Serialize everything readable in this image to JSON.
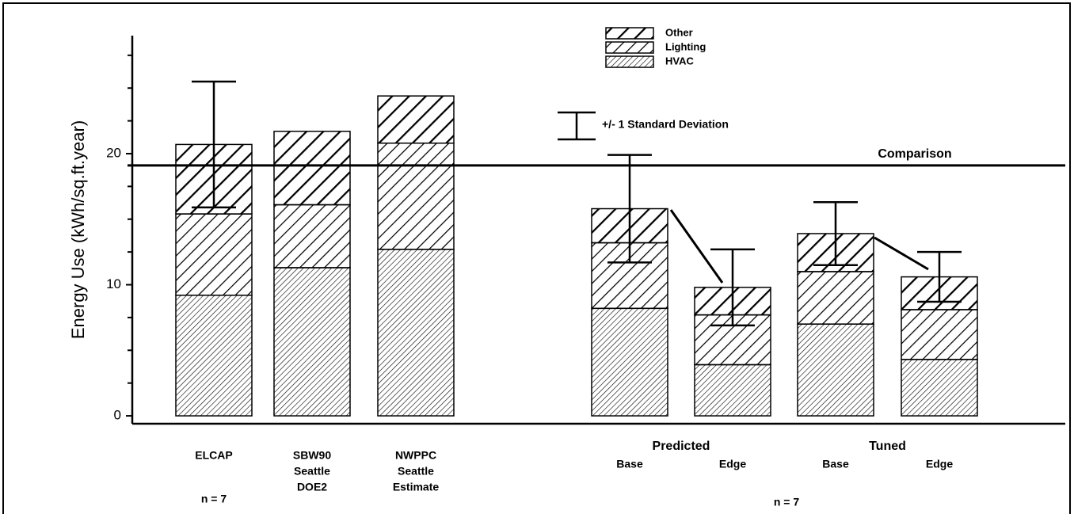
{
  "chart_data": {
    "type": "stacked_bar",
    "y_label": "Energy Use (kWh/sq.ft.year)",
    "categories": [
      [
        "ELCAP"
      ],
      [
        "SBW90",
        "Seattle",
        "DOE2"
      ],
      [
        "NWPPC",
        "Seattle",
        "Estimate"
      ],
      [
        "Base"
      ],
      [
        "Edge"
      ],
      [
        "Base"
      ],
      [
        "Edge"
      ]
    ],
    "groups": [
      {
        "label": "Predicted",
        "from": 3,
        "to": 4
      },
      {
        "label": "Tuned",
        "from": 5,
        "to": 6
      }
    ],
    "annotations": [
      "n = 7",
      "n = 7"
    ],
    "series": [
      {
        "name": "HVAC",
        "color": "#000000",
        "values": [
          9.2,
          11.3,
          12.7,
          8.2,
          3.9,
          7.0,
          4.3
        ]
      },
      {
        "name": "Lighting",
        "color": "#000000",
        "values": [
          6.2,
          4.8,
          8.1,
          5.0,
          3.8,
          4.0,
          3.8
        ]
      },
      {
        "name": "Other",
        "color": "#000000",
        "values": [
          5.3,
          5.6,
          3.6,
          2.6,
          2.1,
          2.9,
          2.5
        ]
      }
    ],
    "errors": [
      4.8,
      null,
      null,
      4.1,
      2.9,
      2.4,
      1.9
    ],
    "error_legend": "+/- 1 Standard Deviation",
    "comparison": 19.1,
    "comparison_label": "Comparison",
    "ylim": [
      -0.6,
      29
    ],
    "yticks": [
      0,
      10,
      20
    ],
    "yticks_minor": [
      2.5,
      5,
      7.5,
      12.5,
      15,
      17.5,
      22.5,
      25,
      27.5
    ]
  }
}
